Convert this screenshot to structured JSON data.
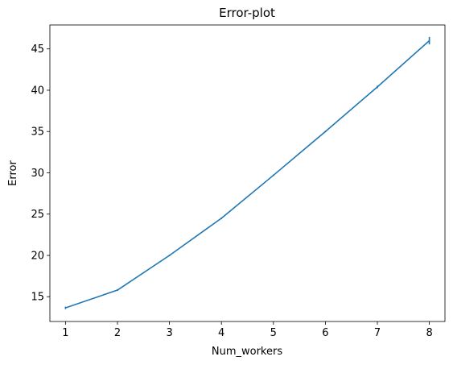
{
  "chart_data": {
    "type": "line",
    "title": "Error-plot",
    "xlabel": "Num_workers",
    "ylabel": "Error",
    "xlim": [
      0.7,
      8.3
    ],
    "ylim": [
      12.0,
      47.9
    ],
    "xticks": [
      1,
      2,
      3,
      4,
      5,
      6,
      7,
      8
    ],
    "yticks": [
      15,
      20,
      25,
      30,
      35,
      40,
      45
    ],
    "grid": false,
    "legend": "none",
    "series": [
      {
        "color": "#1f77b4",
        "x": [
          1,
          2,
          3,
          4,
          5,
          6,
          7,
          8
        ],
        "y": [
          13.65,
          15.8,
          20.0,
          24.5,
          29.7,
          35.0,
          40.4,
          46.0
        ],
        "yerr": [
          0.15,
          0.1,
          0.1,
          0.1,
          0.1,
          0.1,
          0.15,
          0.45
        ]
      }
    ]
  }
}
